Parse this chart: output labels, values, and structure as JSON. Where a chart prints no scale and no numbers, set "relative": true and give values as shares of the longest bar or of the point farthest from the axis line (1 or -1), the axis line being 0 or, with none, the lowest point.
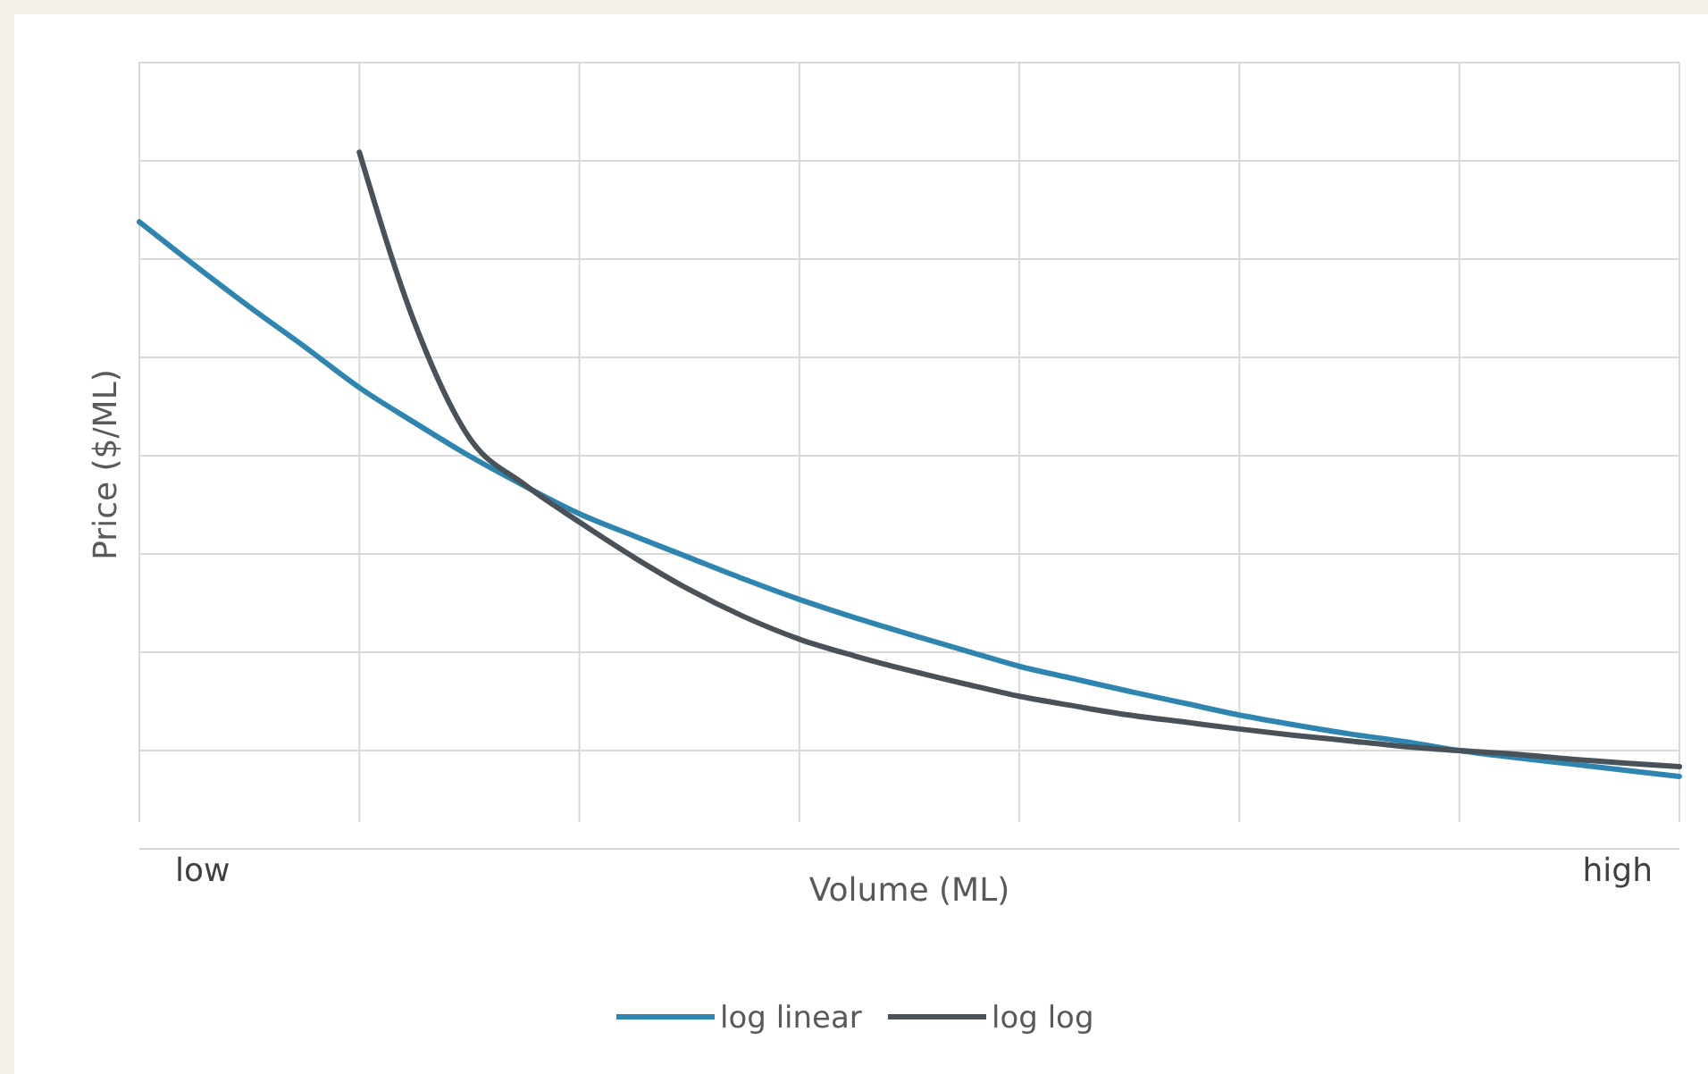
{
  "chart_data": {
    "type": "line",
    "relative": true,
    "xlabel": "Volume (ML)",
    "ylabel": "Price ($/ML)",
    "annotations": [
      "low",
      "high"
    ],
    "grid": true,
    "legend": "bottom",
    "line_style": "solid",
    "marker": "none",
    "categories": [
      null,
      null,
      null,
      null,
      null,
      null,
      null,
      null,
      null,
      null,
      null,
      null,
      null,
      null,
      null,
      null,
      null,
      null,
      null,
      null,
      null,
      null,
      null,
      null,
      null,
      null,
      null,
      null,
      null
    ],
    "series": [
      {
        "name": "log linear",
        "color": "#2e86b0",
        "values": [
          0.9,
          0.838,
          0.778,
          0.721,
          0.662,
          0.612,
          0.564,
          0.521,
          0.481,
          0.449,
          0.418,
          0.387,
          0.358,
          0.332,
          0.308,
          0.285,
          0.262,
          0.244,
          0.226,
          0.209,
          0.192,
          0.178,
          0.165,
          0.154,
          0.141,
          0.131,
          0.122,
          0.113,
          0.104
        ]
      },
      {
        "name": "log log",
        "color": "#4a5259",
        "values": [
          null,
          null,
          null,
          null,
          1,
          0.756,
          0.59,
          0.523,
          0.469,
          0.418,
          0.372,
          0.333,
          0.301,
          0.277,
          0.256,
          0.237,
          0.219,
          0.205,
          0.192,
          0.182,
          0.172,
          0.163,
          0.155,
          0.147,
          0.141,
          0.136,
          0.129,
          0.123,
          0.118
        ]
      }
    ]
  }
}
